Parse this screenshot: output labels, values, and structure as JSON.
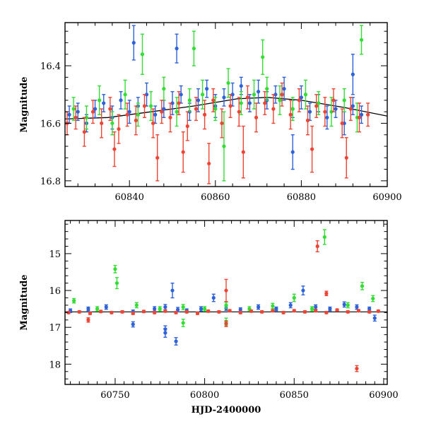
{
  "chart_data": [
    {
      "type": "scatter",
      "title": "",
      "xlabel": "",
      "ylabel": "Magnitude",
      "xlim": [
        60825,
        60900
      ],
      "ylim": [
        16.82,
        16.25
      ],
      "y_inverted": true,
      "xticks": [
        60840,
        60860,
        60880,
        60900
      ],
      "yticks": [
        16.4,
        16.6,
        16.8
      ],
      "grid": false,
      "legend": "none",
      "error_bars": true,
      "trend_curve": {
        "x": [
          60825,
          60835,
          60845,
          60855,
          60865,
          60872,
          60880,
          60890,
          60900
        ],
        "y": [
          16.585,
          16.58,
          16.56,
          16.54,
          16.515,
          16.51,
          16.52,
          16.545,
          16.575
        ],
        "color": "#000000"
      },
      "series": [
        {
          "color": "#2e62d9",
          "x": [
            60826,
            60828,
            60830,
            60832,
            60834,
            60836,
            60838,
            60840,
            60842,
            60844,
            60846,
            60848,
            60850,
            60852,
            60854,
            60856,
            60858,
            60860,
            60862,
            60864,
            60866,
            60868,
            60870,
            60872,
            60874,
            60876,
            60878,
            60880,
            60882,
            60884,
            60886,
            60888,
            60890,
            60892,
            60894,
            60841,
            60851,
            60892,
            60878
          ],
          "y": [
            16.57,
            16.56,
            16.6,
            16.55,
            16.53,
            16.58,
            16.52,
            16.56,
            16.54,
            16.5,
            16.57,
            16.55,
            16.53,
            16.5,
            16.56,
            16.52,
            16.48,
            16.54,
            16.51,
            16.5,
            16.47,
            16.53,
            16.49,
            16.52,
            16.5,
            16.48,
            16.55,
            16.51,
            16.56,
            16.53,
            16.58,
            16.55,
            16.6,
            16.54,
            16.57,
            16.32,
            16.34,
            16.43,
            16.7
          ],
          "err": [
            0.03,
            0.03,
            0.03,
            0.03,
            0.03,
            0.04,
            0.03,
            0.04,
            0.03,
            0.04,
            0.03,
            0.03,
            0.04,
            0.03,
            0.03,
            0.04,
            0.03,
            0.04,
            0.03,
            0.04,
            0.03,
            0.03,
            0.04,
            0.03,
            0.03,
            0.04,
            0.03,
            0.04,
            0.03,
            0.03,
            0.04,
            0.03,
            0.04,
            0.03,
            0.03,
            0.06,
            0.05,
            0.07,
            0.06
          ]
        },
        {
          "color": "#33dd33",
          "x": [
            60827,
            60830,
            60833,
            60836,
            60839,
            60842,
            60845,
            60848,
            60851,
            60854,
            60857,
            60860,
            60863,
            60866,
            60869,
            60872,
            60875,
            60878,
            60881,
            60884,
            60887,
            60890,
            60893,
            60843,
            60855,
            60871,
            60894,
            60862
          ],
          "y": [
            16.55,
            16.58,
            16.52,
            16.6,
            16.5,
            16.57,
            16.54,
            16.48,
            16.56,
            16.52,
            16.5,
            16.55,
            16.46,
            16.53,
            16.5,
            16.48,
            16.52,
            16.55,
            16.5,
            16.53,
            16.56,
            16.52,
            16.58,
            16.36,
            16.34,
            16.37,
            16.31,
            16.68
          ],
          "err": [
            0.04,
            0.04,
            0.05,
            0.04,
            0.05,
            0.04,
            0.05,
            0.04,
            0.05,
            0.04,
            0.05,
            0.04,
            0.05,
            0.04,
            0.05,
            0.04,
            0.05,
            0.04,
            0.05,
            0.04,
            0.05,
            0.04,
            0.05,
            0.07,
            0.06,
            0.06,
            0.05,
            0.12
          ]
        },
        {
          "color": "#ee4433",
          "x": [
            60825.5,
            60827.5,
            60829.5,
            60831.5,
            60833.5,
            60835.5,
            60837.5,
            60839.5,
            60841.5,
            60843.5,
            60845.5,
            60847.5,
            60849.5,
            60851.5,
            60853.5,
            60855.5,
            60857.5,
            60859.5,
            60861.5,
            60863.5,
            60865.5,
            60867.5,
            60869.5,
            60871.5,
            60873.5,
            60875.5,
            60877.5,
            60879.5,
            60881.5,
            60883.5,
            60885.5,
            60887.5,
            60889.5,
            60891.5,
            60893.5,
            60895.5,
            60846.5,
            60858.5,
            60866.5,
            60882.5,
            60890.5,
            60836.5,
            60852.5
          ],
          "y": [
            16.6,
            16.58,
            16.63,
            16.56,
            16.6,
            16.55,
            16.62,
            16.57,
            16.59,
            16.54,
            16.6,
            16.56,
            16.58,
            16.53,
            16.61,
            16.55,
            16.57,
            16.52,
            16.6,
            16.54,
            16.56,
            16.51,
            16.58,
            16.53,
            16.55,
            16.5,
            16.57,
            16.52,
            16.59,
            16.54,
            16.56,
            16.52,
            16.6,
            16.55,
            16.58,
            16.57,
            16.72,
            16.74,
            16.7,
            16.69,
            16.72,
            16.69,
            16.7
          ],
          "err": [
            0.04,
            0.04,
            0.05,
            0.04,
            0.05,
            0.04,
            0.05,
            0.04,
            0.05,
            0.04,
            0.05,
            0.04,
            0.05,
            0.04,
            0.05,
            0.04,
            0.05,
            0.04,
            0.05,
            0.04,
            0.05,
            0.04,
            0.05,
            0.04,
            0.05,
            0.04,
            0.05,
            0.04,
            0.05,
            0.04,
            0.05,
            0.04,
            0.05,
            0.04,
            0.05,
            0.04,
            0.08,
            0.07,
            0.09,
            0.08,
            0.07,
            0.06,
            0.07
          ]
        }
      ]
    },
    {
      "type": "scatter",
      "title": "",
      "xlabel": "HJD-2400000",
      "ylabel": "Magnitude",
      "xlim": [
        60722,
        60902
      ],
      "ylim": [
        18.55,
        14.1
      ],
      "y_inverted": true,
      "xticks": [
        60750,
        60800,
        60850,
        60900
      ],
      "yticks": [
        15,
        16,
        17,
        18
      ],
      "grid": false,
      "legend": "none",
      "error_bars": true,
      "reference_line": {
        "y": 16.58,
        "color": "#000000"
      },
      "series": [
        {
          "color": "#2e62d9",
          "x": [
            60725,
            60735,
            60745,
            60760,
            60772,
            60778,
            60782,
            60785,
            60790,
            60798,
            60805,
            60812,
            60820,
            60830,
            60840,
            60848,
            60855,
            60862,
            60870,
            60878,
            60885,
            60892,
            60895,
            60760,
            60778,
            60784,
            60778
          ],
          "y": [
            16.55,
            16.5,
            16.45,
            16.58,
            16.5,
            16.45,
            16.0,
            16.52,
            16.55,
            16.5,
            16.2,
            16.48,
            16.52,
            16.45,
            16.5,
            16.4,
            16.0,
            16.45,
            16.5,
            16.38,
            16.45,
            16.5,
            16.75,
            16.92,
            17.05,
            17.38,
            17.15
          ],
          "err": [
            0.05,
            0.05,
            0.06,
            0.05,
            0.06,
            0.07,
            0.2,
            0.06,
            0.05,
            0.06,
            0.1,
            0.06,
            0.05,
            0.06,
            0.05,
            0.07,
            0.12,
            0.06,
            0.05,
            0.07,
            0.06,
            0.05,
            0.08,
            0.07,
            0.09,
            0.1,
            0.12
          ]
        },
        {
          "color": "#33dd33",
          "x": [
            60727,
            60740,
            60750,
            60751,
            60762,
            60775,
            60788,
            60800,
            60812,
            60825,
            60838,
            60850,
            60860,
            60867,
            60880,
            60888,
            60894,
            60812,
            60788
          ],
          "y": [
            16.28,
            16.5,
            15.42,
            15.8,
            16.4,
            16.5,
            16.45,
            16.5,
            16.4,
            16.5,
            16.42,
            16.2,
            16.5,
            14.55,
            16.4,
            15.88,
            16.22,
            16.85,
            16.88
          ],
          "err": [
            0.06,
            0.06,
            0.1,
            0.15,
            0.07,
            0.06,
            0.07,
            0.06,
            0.08,
            0.06,
            0.07,
            0.1,
            0.06,
            0.2,
            0.07,
            0.1,
            0.08,
            0.1,
            0.1
          ]
        },
        {
          "color": "#ee4433",
          "x": [
            60724,
            60730,
            60736,
            60742,
            60748,
            60754,
            60760,
            60766,
            60772,
            60778,
            60784,
            60790,
            60796,
            60802,
            60808,
            60814,
            60820,
            60826,
            60832,
            60838,
            60844,
            60850,
            60856,
            60862,
            60868,
            60874,
            60880,
            60886,
            60892,
            60897,
            60863,
            60868,
            60885,
            60812,
            60735,
            60812
          ],
          "y": [
            16.6,
            16.58,
            16.62,
            16.57,
            16.6,
            16.58,
            16.62,
            16.57,
            16.6,
            16.56,
            16.6,
            16.58,
            16.62,
            16.56,
            16.58,
            16.55,
            16.6,
            16.56,
            16.58,
            16.55,
            16.6,
            16.55,
            16.58,
            16.55,
            16.6,
            16.53,
            16.58,
            16.55,
            16.58,
            16.56,
            14.8,
            16.08,
            18.12,
            16.0,
            16.8,
            16.9
          ],
          "err": [
            0.03,
            0.03,
            0.03,
            0.03,
            0.03,
            0.03,
            0.03,
            0.03,
            0.03,
            0.03,
            0.03,
            0.03,
            0.03,
            0.03,
            0.03,
            0.03,
            0.03,
            0.03,
            0.03,
            0.03,
            0.03,
            0.03,
            0.03,
            0.03,
            0.03,
            0.03,
            0.03,
            0.03,
            0.03,
            0.03,
            0.15,
            0.06,
            0.08,
            0.3,
            0.06,
            0.08
          ]
        }
      ]
    }
  ]
}
